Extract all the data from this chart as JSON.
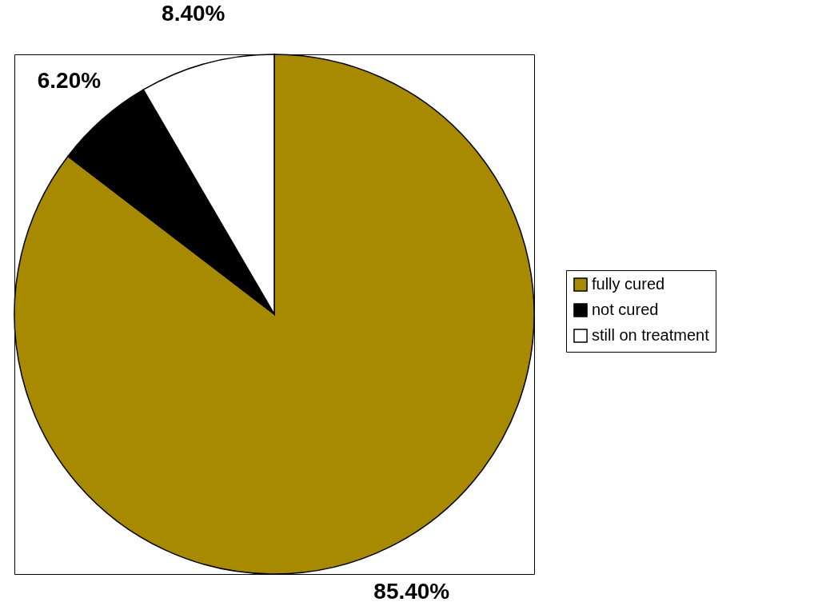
{
  "chart_data": {
    "type": "pie",
    "categories": [
      "fully cured",
      "not cured",
      "still on treatment"
    ],
    "values": [
      85.4,
      6.2,
      8.4
    ],
    "colors": [
      "#a88a00",
      "#000000",
      "#ffffff"
    ],
    "value_labels": [
      "85.40%",
      "6.20%",
      "8.40%"
    ],
    "legend": "right"
  }
}
